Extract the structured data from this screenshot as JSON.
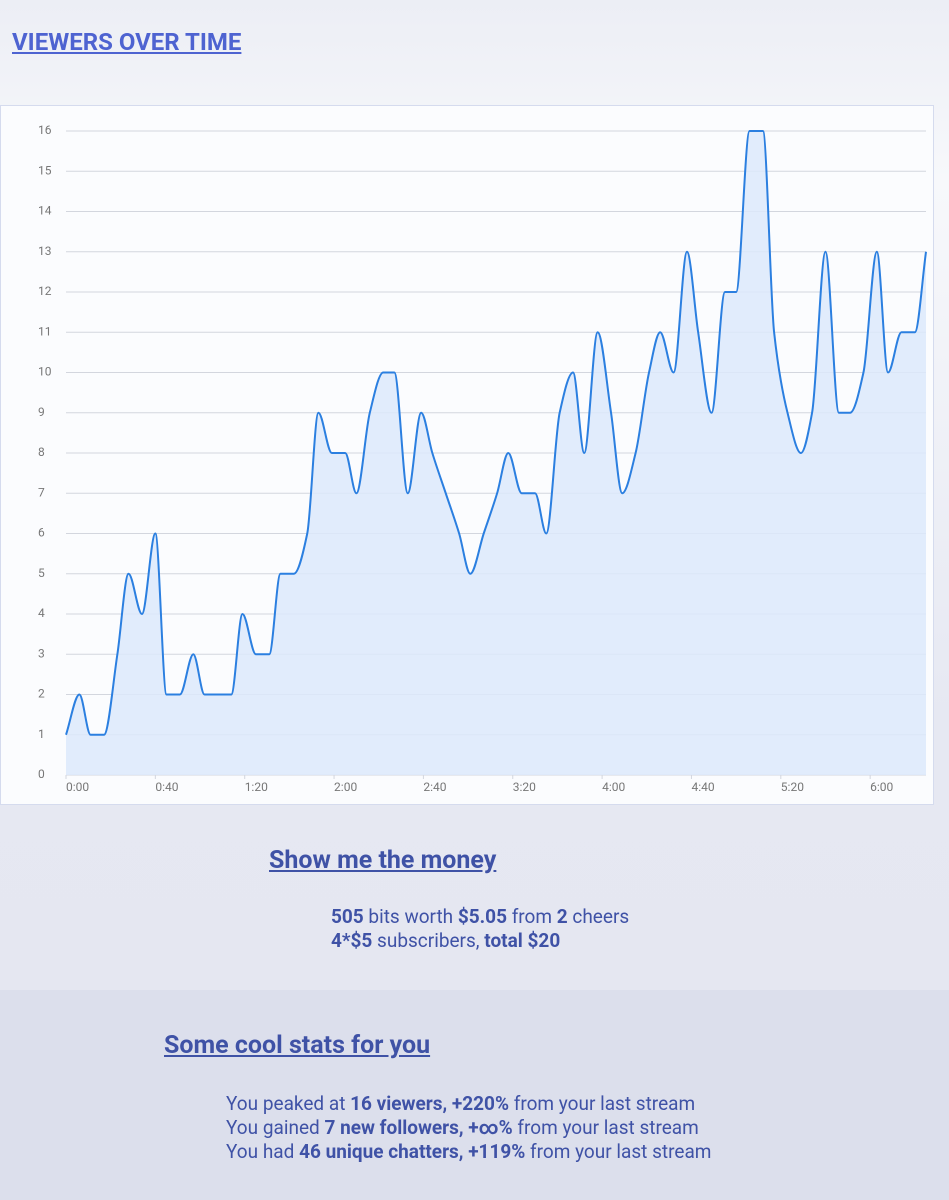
{
  "header": {
    "title": "VIEWERS OVER TIME"
  },
  "chart_data": {
    "type": "line",
    "x": [
      0,
      6,
      11,
      17,
      23,
      28,
      34,
      40,
      45,
      51,
      57,
      62,
      68,
      74,
      79,
      85,
      91,
      96,
      102,
      108,
      113,
      119,
      125,
      130,
      136,
      142,
      147,
      153,
      159,
      164,
      170,
      176,
      181,
      187,
      193,
      198,
      204,
      210,
      215,
      221,
      227,
      232,
      238,
      244,
      249,
      255,
      261,
      266,
      272,
      278,
      283,
      289,
      295,
      300,
      306,
      312,
      317,
      323,
      329,
      334,
      340,
      346,
      351,
      357,
      363,
      368,
      374,
      380,
      385
    ],
    "values": [
      1,
      2,
      1,
      1,
      3,
      5,
      4,
      6,
      2,
      2,
      3,
      2,
      2,
      2,
      4,
      3,
      3,
      5,
      5,
      6,
      9,
      8,
      8,
      7,
      9,
      10,
      10,
      7,
      9,
      8,
      7,
      6,
      5,
      6,
      7,
      8,
      7,
      7,
      6,
      9,
      10,
      8,
      11,
      9,
      7,
      8,
      10,
      11,
      10,
      13,
      11,
      9,
      12,
      12,
      16,
      16,
      11,
      9,
      8,
      9,
      13,
      9,
      9,
      10,
      13,
      10,
      11,
      11,
      13
    ],
    "color": "#2b7fe0",
    "fill": "#dce9fb",
    "xlim": [
      0,
      385
    ],
    "xticks": [
      {
        "value": 0,
        "label": "0:00"
      },
      {
        "value": 40,
        "label": "0:40"
      },
      {
        "value": 80,
        "label": "1:20"
      },
      {
        "value": 120,
        "label": "2:00"
      },
      {
        "value": 160,
        "label": "2:40"
      },
      {
        "value": 200,
        "label": "3:20"
      },
      {
        "value": 240,
        "label": "4:00"
      },
      {
        "value": 280,
        "label": "4:40"
      },
      {
        "value": 320,
        "label": "5:20"
      },
      {
        "value": 360,
        "label": "6:00"
      }
    ],
    "ylim": [
      0,
      16
    ],
    "yticks": [
      0,
      1,
      2,
      3,
      4,
      5,
      6,
      7,
      8,
      9,
      10,
      11,
      12,
      13,
      14,
      15,
      16
    ],
    "grid": true
  },
  "money": {
    "title": "Show me the money",
    "lines": [
      [
        "505",
        " bits worth ",
        "$5.05",
        " from ",
        "2",
        " cheers"
      ],
      [
        "4*$5",
        " subscribers, ",
        "total $20"
      ]
    ]
  },
  "stats": {
    "title": "Some cool stats for you",
    "lines": [
      [
        "You peaked at ",
        "16 viewers, +220%",
        " from your last stream"
      ],
      [
        "You gained ",
        "7 new followers, +∞%",
        " from your last stream"
      ],
      [
        "You had ",
        "46 unique chatters, +119%",
        " from your last stream"
      ]
    ]
  }
}
